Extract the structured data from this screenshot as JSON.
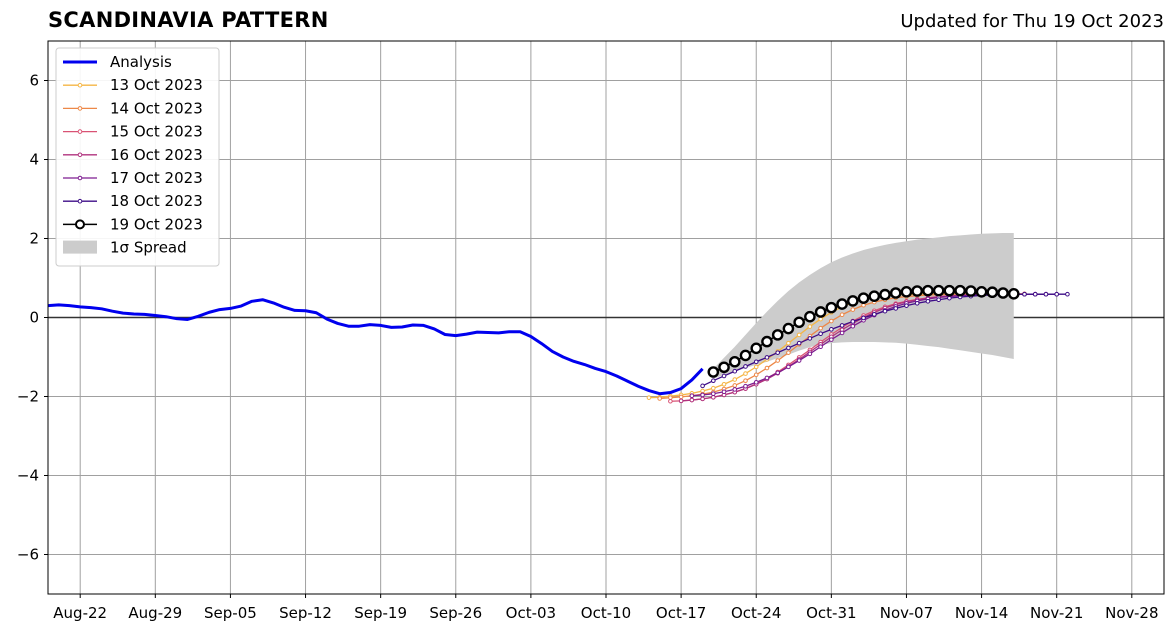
{
  "header": {
    "title": "SCANDINAVIA PATTERN",
    "updated": "Updated for Thu 19 Oct 2023"
  },
  "chart_data": {
    "type": "line",
    "xaxis": {
      "range": [
        "2023-08-19",
        "2023-12-01"
      ],
      "ticks": [
        {
          "date": "2023-08-22",
          "label": "Aug-22"
        },
        {
          "date": "2023-08-29",
          "label": "Aug-29"
        },
        {
          "date": "2023-09-05",
          "label": "Sep-05"
        },
        {
          "date": "2023-09-12",
          "label": "Sep-12"
        },
        {
          "date": "2023-09-19",
          "label": "Sep-19"
        },
        {
          "date": "2023-09-26",
          "label": "Sep-26"
        },
        {
          "date": "2023-10-03",
          "label": "Oct-03"
        },
        {
          "date": "2023-10-10",
          "label": "Oct-10"
        },
        {
          "date": "2023-10-17",
          "label": "Oct-17"
        },
        {
          "date": "2023-10-24",
          "label": "Oct-24"
        },
        {
          "date": "2023-10-31",
          "label": "Oct-31"
        },
        {
          "date": "2023-11-07",
          "label": "Nov-07"
        },
        {
          "date": "2023-11-14",
          "label": "Nov-14"
        },
        {
          "date": "2023-11-21",
          "label": "Nov-21"
        },
        {
          "date": "2023-11-28",
          "label": "Nov-28"
        }
      ]
    },
    "yaxis": {
      "range": [
        -7,
        7
      ],
      "ticks": [
        -6,
        -4,
        -2,
        0,
        2,
        4,
        6
      ],
      "tick_labels": [
        "−6",
        "−4",
        "−2",
        "0",
        "2",
        "4",
        "6"
      ]
    },
    "grid": true,
    "legend": {
      "placement": "top-left",
      "entries": [
        {
          "label": "Analysis",
          "color": "#0000ee",
          "style": "line"
        },
        {
          "label": "13 Oct 2023",
          "color": "#f5b645",
          "style": "small-marker"
        },
        {
          "label": "14 Oct 2023",
          "color": "#ed8848",
          "style": "small-marker"
        },
        {
          "label": "15 Oct 2023",
          "color": "#d95274",
          "style": "small-marker"
        },
        {
          "label": "16 Oct 2023",
          "color": "#b0327e",
          "style": "small-marker"
        },
        {
          "label": "17 Oct 2023",
          "color": "#7d1c90",
          "style": "small-marker"
        },
        {
          "label": "18 Oct 2023",
          "color": "#3d0c87",
          "style": "small-marker"
        },
        {
          "label": "19 Oct 2023",
          "color": "#000000",
          "style": "big-marker"
        },
        {
          "label": "1σ Spread",
          "color": "#cccccc",
          "style": "patch"
        }
      ]
    },
    "analysis": {
      "start_date": "2023-08-19",
      "values": [
        0.3,
        0.32,
        0.3,
        0.27,
        0.25,
        0.22,
        0.16,
        0.11,
        0.09,
        0.08,
        0.05,
        0.02,
        -0.03,
        -0.05,
        0.03,
        0.13,
        0.2,
        0.23,
        0.29,
        0.41,
        0.45,
        0.37,
        0.26,
        0.18,
        0.17,
        0.12,
        -0.04,
        -0.15,
        -0.22,
        -0.22,
        -0.18,
        -0.2,
        -0.25,
        -0.24,
        -0.19,
        -0.2,
        -0.29,
        -0.43,
        -0.46,
        -0.42,
        -0.37,
        -0.38,
        -0.39,
        -0.36,
        -0.36,
        -0.48,
        -0.66,
        -0.86,
        -1.0,
        -1.11,
        -1.19,
        -1.29,
        -1.37,
        -1.48,
        -1.61,
        -1.74,
        -1.85,
        -1.93,
        -1.9,
        -1.8,
        -1.58,
        -1.3
      ]
    },
    "spread": {
      "start_date": "2023-10-20",
      "upper": [
        -1.3,
        -1.02,
        -0.74,
        -0.44,
        -0.14,
        0.15,
        0.42,
        0.67,
        0.89,
        1.08,
        1.25,
        1.4,
        1.52,
        1.62,
        1.71,
        1.78,
        1.84,
        1.89,
        1.93,
        1.97,
        2.0,
        2.03,
        2.06,
        2.08,
        2.1,
        2.12,
        2.13,
        2.14,
        2.14
      ],
      "lower": [
        -1.55,
        -1.45,
        -1.37,
        -1.28,
        -1.2,
        -1.12,
        -1.03,
        -0.94,
        -0.84,
        -0.75,
        -0.69,
        -0.65,
        -0.63,
        -0.62,
        -0.62,
        -0.62,
        -0.63,
        -0.64,
        -0.66,
        -0.69,
        -0.72,
        -0.75,
        -0.79,
        -0.83,
        -0.87,
        -0.91,
        -0.95,
        -1.0,
        -1.05
      ]
    },
    "forecasts": [
      {
        "name": "13 Oct 2023",
        "start_date": "2023-10-14",
        "color": "#f5b645",
        "values": [
          -2.03,
          -2.02,
          -1.99,
          -1.96,
          -1.92,
          -1.86,
          -1.79,
          -1.69,
          -1.57,
          -1.42,
          -1.25,
          -1.06,
          -0.86,
          -0.65,
          -0.44,
          -0.23,
          -0.04,
          0.13,
          0.27,
          0.38,
          0.46,
          0.51,
          0.55,
          0.57,
          0.58,
          0.59,
          0.6,
          0.6,
          0.6,
          0.6,
          0.6,
          0.59,
          0.59,
          0.59,
          0.59
        ]
      },
      {
        "name": "14 Oct 2023",
        "start_date": "2023-10-15",
        "color": "#ed8848",
        "values": [
          -2.05,
          -2.03,
          -2.01,
          -1.98,
          -1.94,
          -1.89,
          -1.81,
          -1.72,
          -1.6,
          -1.45,
          -1.28,
          -1.09,
          -0.89,
          -0.68,
          -0.47,
          -0.27,
          -0.09,
          0.07,
          0.2,
          0.31,
          0.39,
          0.45,
          0.5,
          0.53,
          0.55,
          0.57,
          0.58,
          0.59,
          0.59,
          0.6,
          0.6,
          0.6,
          0.6,
          0.6,
          0.6
        ]
      },
      {
        "name": "15 Oct 2023",
        "start_date": "2023-10-16",
        "color": "#d95274",
        "values": [
          -2.12,
          -2.11,
          -2.09,
          -2.06,
          -2.02,
          -1.96,
          -1.89,
          -1.8,
          -1.68,
          -1.54,
          -1.38,
          -1.2,
          -1.01,
          -0.82,
          -0.62,
          -0.43,
          -0.25,
          -0.09,
          0.05,
          0.17,
          0.27,
          0.35,
          0.41,
          0.46,
          0.5,
          0.53,
          0.55,
          0.56,
          0.57,
          0.58,
          0.58,
          0.59,
          0.59,
          0.59,
          0.59
        ]
      },
      {
        "name": "16 Oct 2023",
        "start_date": "2023-10-17",
        "color": "#b0327e",
        "values": [
          -2.11,
          -2.09,
          -2.06,
          -2.02,
          -1.96,
          -1.89,
          -1.8,
          -1.69,
          -1.56,
          -1.41,
          -1.24,
          -1.06,
          -0.87,
          -0.68,
          -0.49,
          -0.31,
          -0.15,
          0.0,
          0.13,
          0.24,
          0.33,
          0.4,
          0.45,
          0.49,
          0.52,
          0.54,
          0.56,
          0.57,
          0.58,
          0.58,
          0.59,
          0.59,
          0.59,
          0.59,
          0.59
        ]
      },
      {
        "name": "17 Oct 2023",
        "start_date": "2023-10-18",
        "color": "#7d1c90",
        "values": [
          -1.98,
          -1.96,
          -1.93,
          -1.88,
          -1.82,
          -1.74,
          -1.64,
          -1.53,
          -1.4,
          -1.25,
          -1.09,
          -0.92,
          -0.74,
          -0.56,
          -0.39,
          -0.22,
          -0.07,
          0.06,
          0.18,
          0.28,
          0.36,
          0.42,
          0.47,
          0.51,
          0.53,
          0.55,
          0.57,
          0.58,
          0.58,
          0.59,
          0.59,
          0.59,
          0.59,
          0.59,
          0.59
        ]
      },
      {
        "name": "18 Oct 2023",
        "start_date": "2023-10-19",
        "color": "#3d0c87",
        "values": [
          -1.73,
          -1.6,
          -1.48,
          -1.36,
          -1.24,
          -1.12,
          -1.01,
          -0.89,
          -0.77,
          -0.65,
          -0.53,
          -0.41,
          -0.3,
          -0.2,
          -0.1,
          -0.01,
          0.08,
          0.16,
          0.23,
          0.3,
          0.36,
          0.41,
          0.45,
          0.49,
          0.52,
          0.54,
          0.56,
          0.57,
          0.58,
          0.59,
          0.59,
          0.59,
          0.59,
          0.59,
          0.59
        ]
      },
      {
        "name": "19 Oct 2023",
        "start_date": "2023-10-20",
        "color": "#000000",
        "values": [
          -1.38,
          -1.26,
          -1.12,
          -0.96,
          -0.78,
          -0.61,
          -0.44,
          -0.28,
          -0.12,
          0.02,
          0.14,
          0.25,
          0.34,
          0.42,
          0.49,
          0.54,
          0.58,
          0.62,
          0.65,
          0.67,
          0.68,
          0.68,
          0.68,
          0.68,
          0.67,
          0.65,
          0.64,
          0.62,
          0.6
        ]
      }
    ]
  }
}
